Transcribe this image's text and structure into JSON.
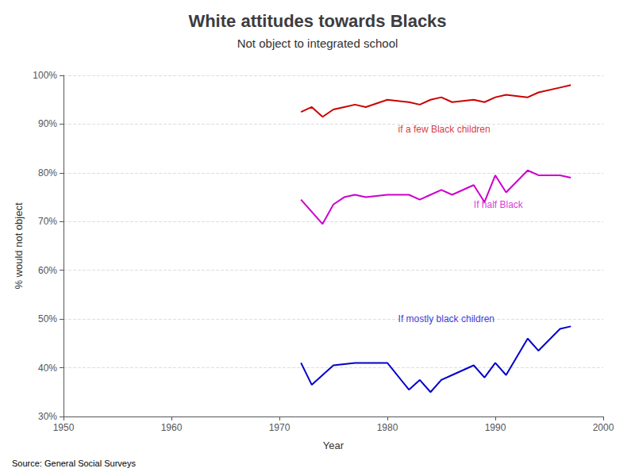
{
  "chart_data": {
    "type": "line",
    "title": "White attitudes towards Blacks",
    "subtitle": "Not object to integrated school",
    "xlabel": "Year",
    "ylabel": "% would not object",
    "source": "Source: General Social Surveys",
    "xlim": [
      1950,
      2000
    ],
    "xticks": [
      1950,
      1960,
      1970,
      1980,
      1990,
      2000
    ],
    "ylim": [
      30,
      100
    ],
    "yticks": [
      {
        "value": 30,
        "label": "30%"
      },
      {
        "value": 40,
        "label": "40%"
      },
      {
        "value": 50,
        "label": "50%"
      },
      {
        "value": 60,
        "label": "60%"
      },
      {
        "value": 70,
        "label": "70%"
      },
      {
        "value": 80,
        "label": "80%"
      },
      {
        "value": 90,
        "label": "90%"
      },
      {
        "value": 100,
        "label": "100%"
      }
    ],
    "grid": true,
    "series": [
      {
        "color": "#cc0000",
        "x": [
          1972,
          1973,
          1974,
          1975,
          1976,
          1977,
          1978,
          1980,
          1982,
          1983,
          1984,
          1985,
          1986,
          1988,
          1989,
          1990,
          1991,
          1993,
          1994,
          1996,
          1997
        ],
        "values": [
          92.5,
          93.5,
          91.5,
          93.0,
          93.5,
          94.0,
          93.5,
          95.0,
          94.5,
          94.0,
          95.0,
          95.5,
          94.5,
          95.0,
          94.5,
          95.5,
          96.0,
          95.5,
          96.5,
          97.5,
          98.0
        ]
      },
      {
        "color": "#cc00cc",
        "x": [
          1972,
          1974,
          1975,
          1976,
          1977,
          1978,
          1980,
          1982,
          1983,
          1984,
          1985,
          1986,
          1988,
          1989,
          1990,
          1991,
          1993,
          1994,
          1996,
          1997
        ],
        "values": [
          74.5,
          69.5,
          73.5,
          75.0,
          75.5,
          75.0,
          75.5,
          75.5,
          74.5,
          75.5,
          76.5,
          75.5,
          77.5,
          74.0,
          79.5,
          76.0,
          80.5,
          79.5,
          79.5,
          79.0
        ]
      },
      {
        "color": "#0000cc",
        "x": [
          1972,
          1973,
          1974,
          1975,
          1977,
          1978,
          1980,
          1982,
          1983,
          1984,
          1985,
          1986,
          1988,
          1989,
          1990,
          1991,
          1993,
          1994,
          1996,
          1997
        ],
        "values": [
          41.0,
          36.5,
          38.5,
          40.5,
          41.0,
          41.0,
          41.0,
          35.5,
          37.5,
          35.0,
          37.5,
          38.5,
          40.5,
          38.0,
          41.0,
          38.5,
          46.0,
          43.5,
          48.0,
          48.5
        ]
      }
    ],
    "annotations": [
      {
        "text": "if a few Black children",
        "x": 1981,
        "y": 88.0,
        "color": "#cc0000"
      },
      {
        "text": "If half Black",
        "x": 1988,
        "y": 72.5,
        "color": "#cc00cc"
      },
      {
        "text": "If mostly black children",
        "x": 1981,
        "y": 49.0,
        "color": "#0000cc"
      }
    ]
  }
}
